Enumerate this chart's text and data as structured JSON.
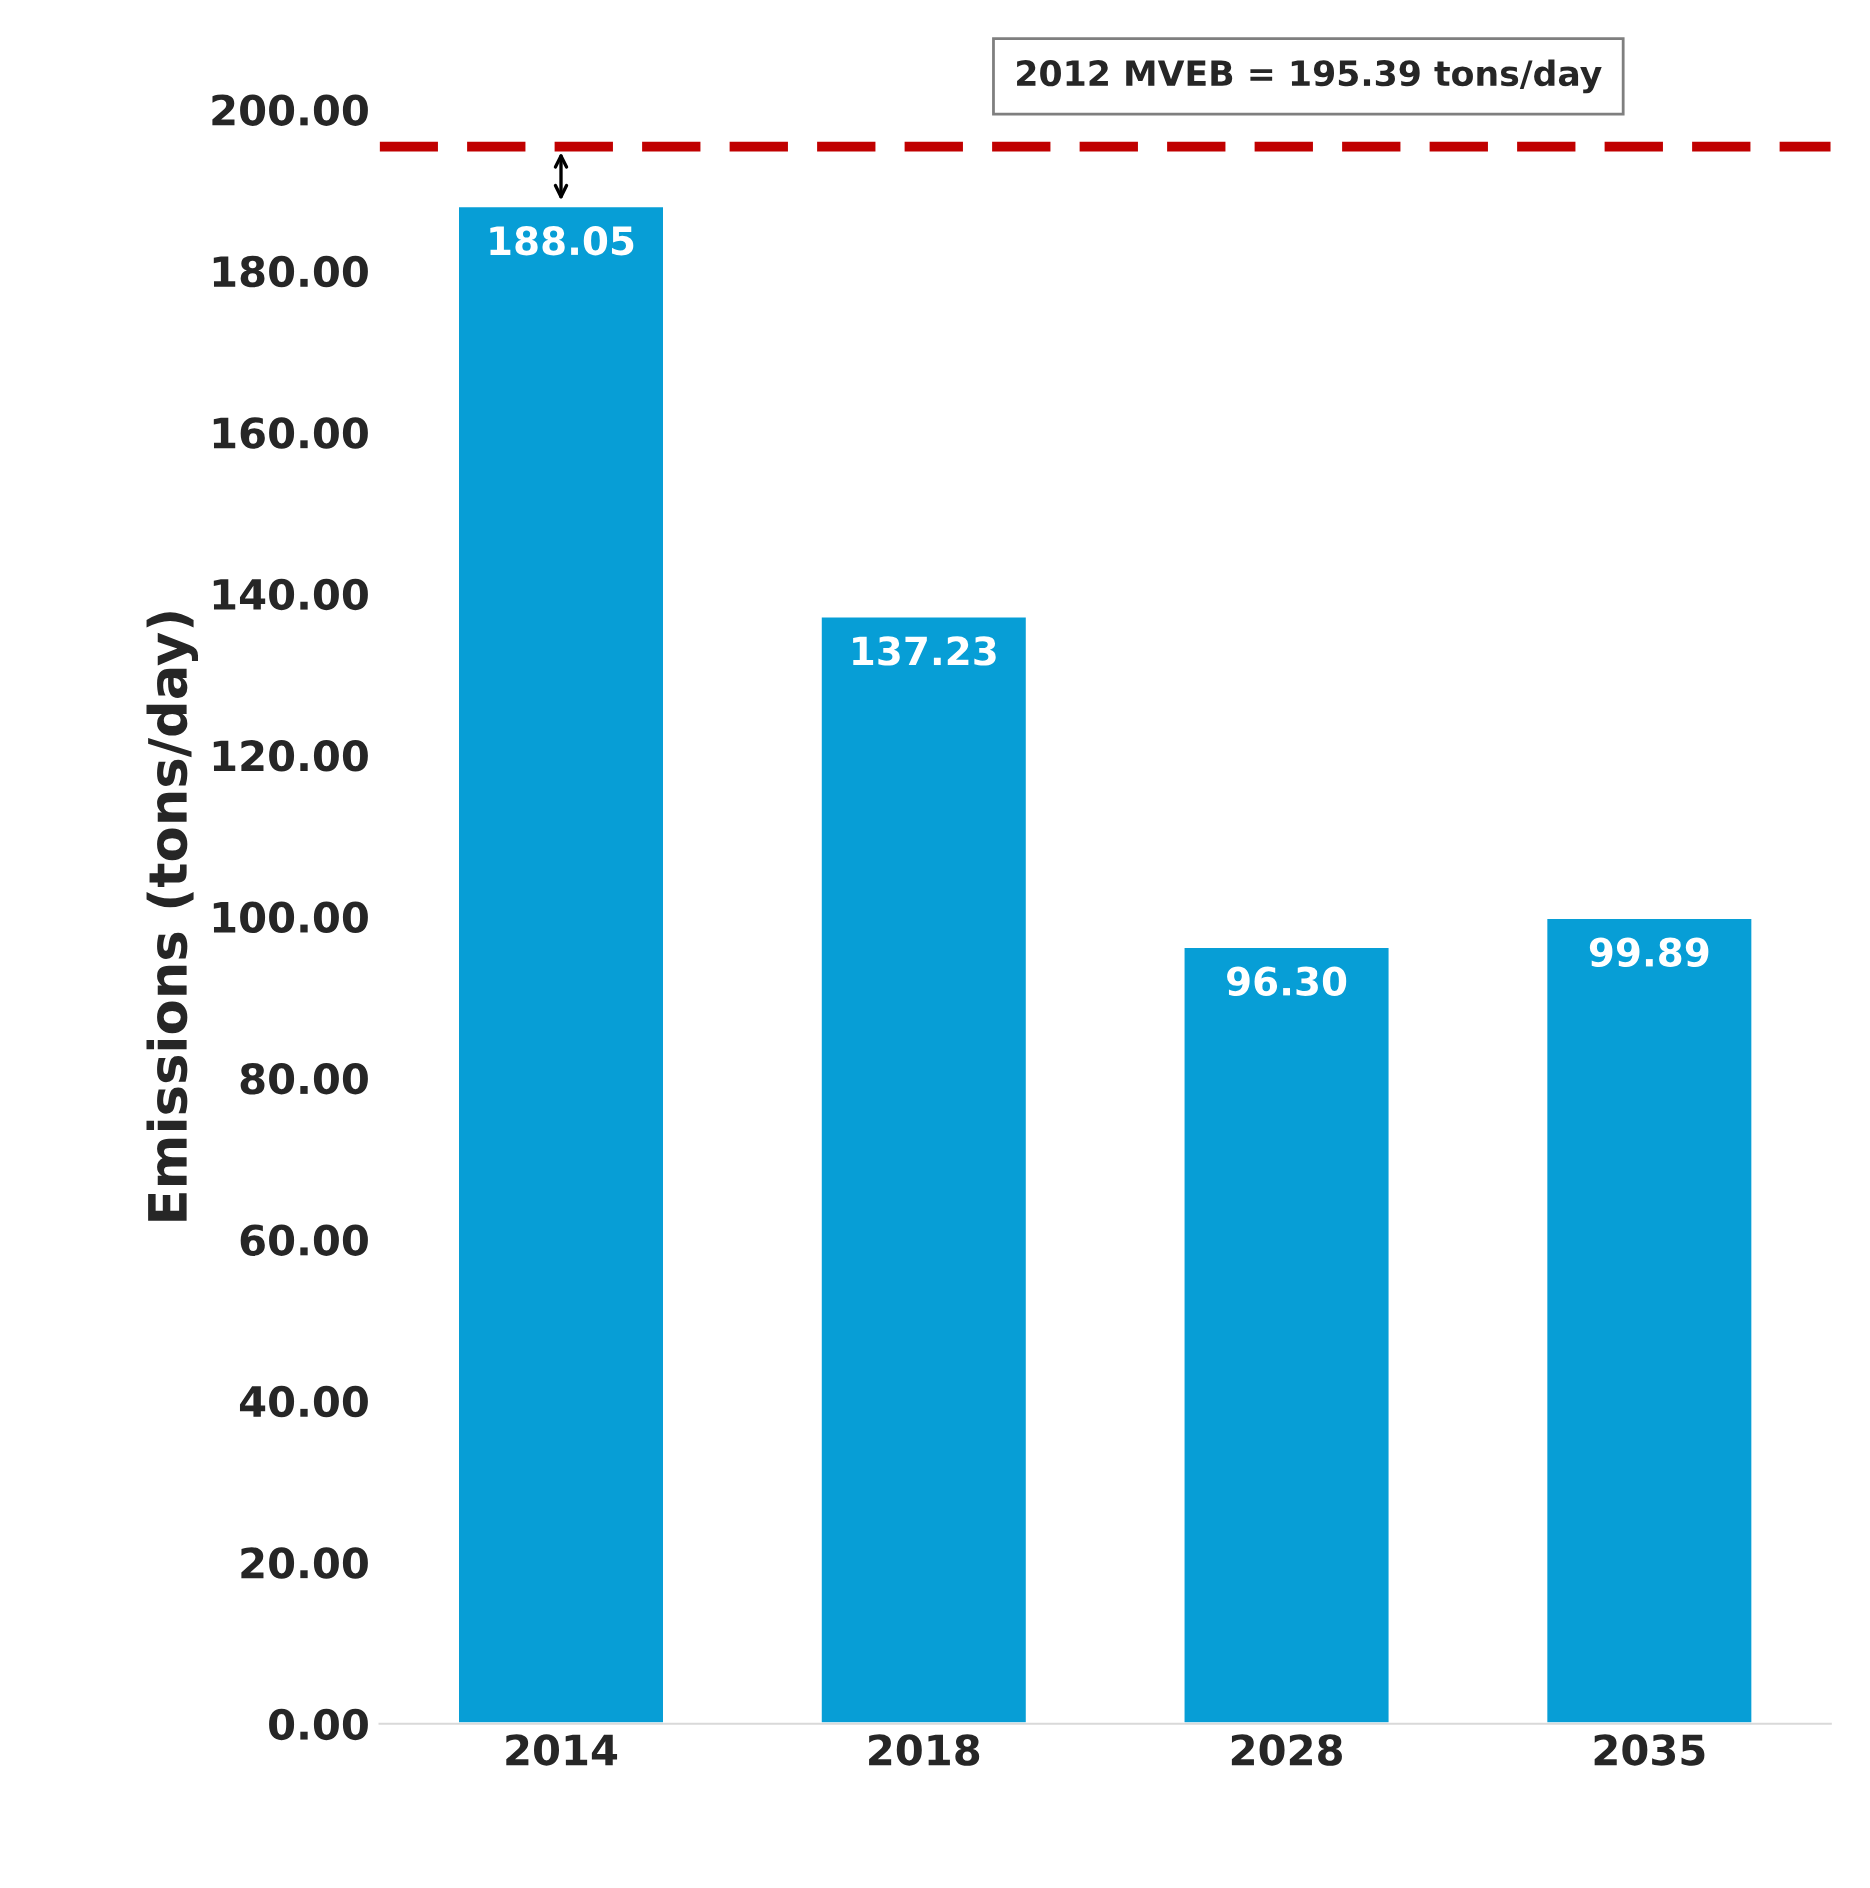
{
  "chart_data": {
    "type": "bar",
    "ylabel": "Emissions (tons/day)",
    "categories": [
      "2014",
      "2018",
      "2028",
      "2035"
    ],
    "values": [
      188.05,
      137.23,
      96.3,
      99.89
    ],
    "value_labels": [
      "188.05",
      "137.23",
      "96.30",
      "99.89"
    ],
    "color": "#079ed6",
    "ylim": [
      0,
      200
    ],
    "yticks": [
      {
        "value": 0,
        "label": "0.00"
      },
      {
        "value": 20,
        "label": "20.00"
      },
      {
        "value": 40,
        "label": "40.00"
      },
      {
        "value": 60,
        "label": "60.00"
      },
      {
        "value": 80,
        "label": "80.00"
      },
      {
        "value": 100,
        "label": "100.00"
      },
      {
        "value": 120,
        "label": "120.00"
      },
      {
        "value": 140,
        "label": "140.00"
      },
      {
        "value": 160,
        "label": "160.00"
      },
      {
        "value": 180,
        "label": "180.00"
      },
      {
        "value": 200,
        "label": "200.00"
      }
    ],
    "ref_lines": [
      {
        "axis": "y",
        "value": 195.39,
        "label": "2012 MVEB = 195.39 tons/day",
        "color": "#c00000",
        "line_style": "dashed"
      }
    ],
    "grid": false
  }
}
